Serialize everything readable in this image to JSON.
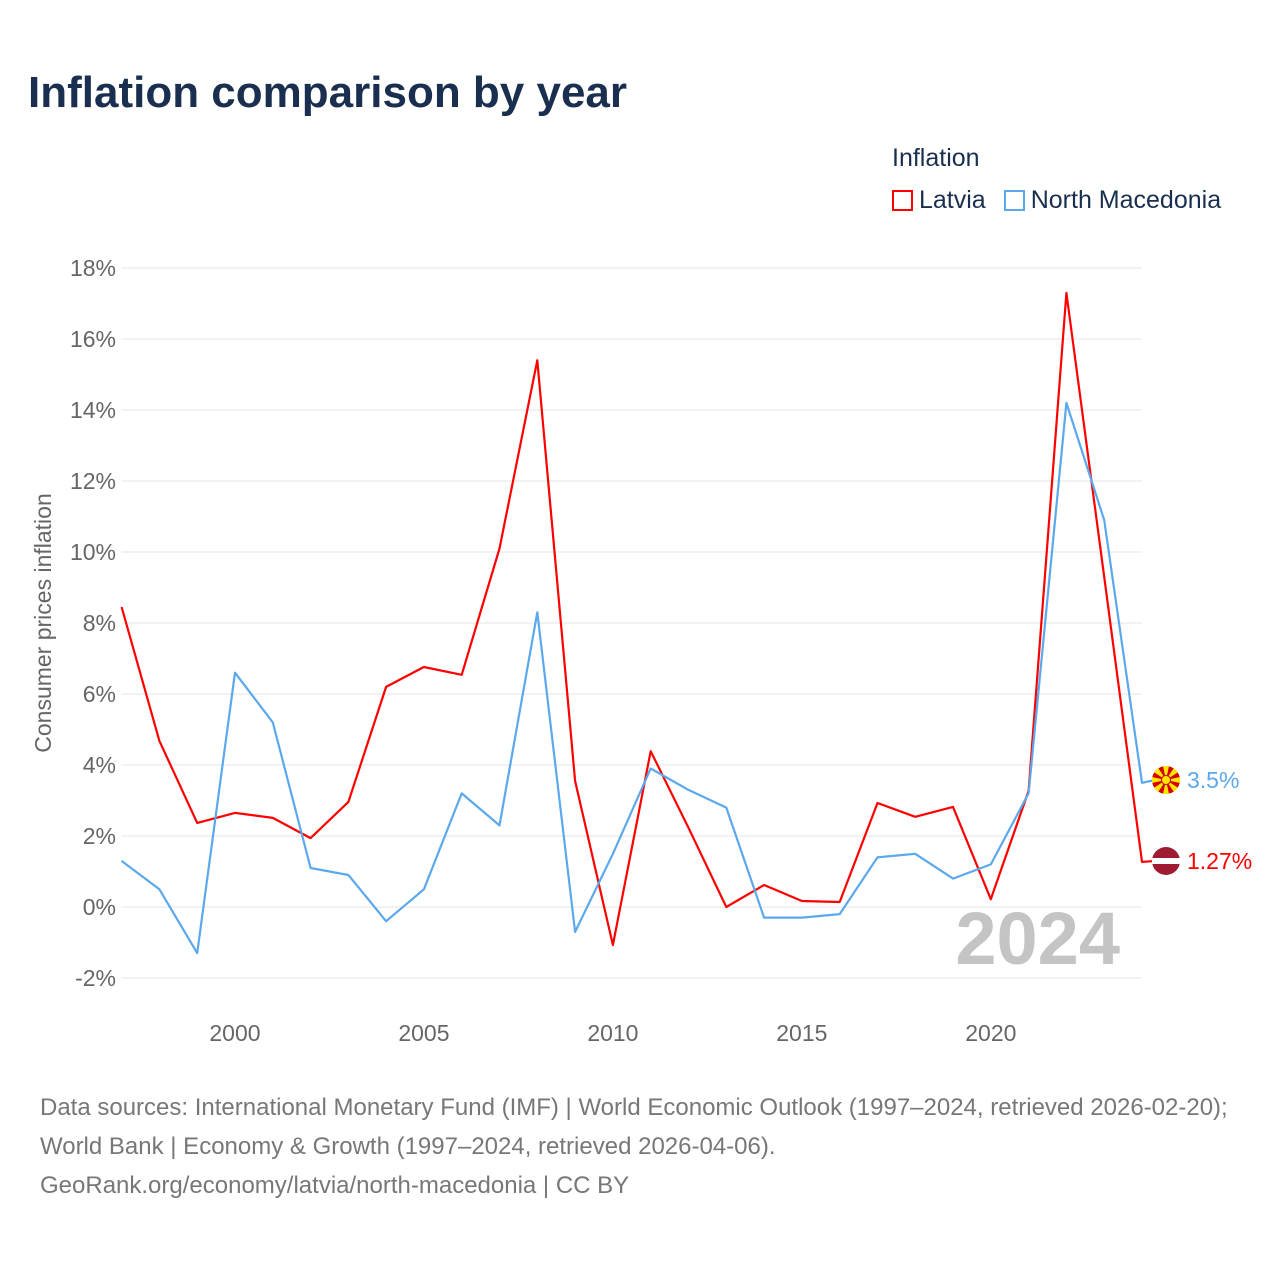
{
  "title": "Inflation comparison by year",
  "chart_data": {
    "type": "line",
    "title": "Inflation comparison by year",
    "ylabel": "Consumer prices inflation",
    "xlabel": "",
    "legend_title": "Inflation",
    "legend_position": "top-right",
    "ylim": [
      -2,
      18
    ],
    "xlim": [
      1997,
      2024
    ],
    "yticks": [
      "18%",
      "16%",
      "14%",
      "12%",
      "10%",
      "8%",
      "6%",
      "4%",
      "2%",
      "0%",
      "-2%"
    ],
    "ytick_values": [
      18,
      16,
      14,
      12,
      10,
      8,
      6,
      4,
      2,
      0,
      -2
    ],
    "xticks": [
      "2000",
      "2005",
      "2010",
      "2015",
      "2020"
    ],
    "xtick_values": [
      2000,
      2005,
      2010,
      2015,
      2020
    ],
    "grid": true,
    "year_watermark": "2024",
    "x": [
      1997,
      1998,
      1999,
      2000,
      2001,
      2002,
      2003,
      2004,
      2005,
      2006,
      2007,
      2008,
      2009,
      2010,
      2011,
      2012,
      2013,
      2014,
      2015,
      2016,
      2017,
      2018,
      2019,
      2020,
      2021,
      2022,
      2023,
      2024
    ],
    "series": [
      {
        "name": "Latvia",
        "color": "#ff0000",
        "end_label": "1.27%",
        "flag": "latvia-flag",
        "values": [
          8.45,
          4.68,
          2.37,
          2.65,
          2.51,
          1.94,
          2.96,
          6.2,
          6.76,
          6.54,
          10.1,
          15.4,
          3.55,
          -1.07,
          4.39,
          2.23,
          0.0,
          0.62,
          0.17,
          0.14,
          2.93,
          2.54,
          2.82,
          0.22,
          3.27,
          17.3,
          9.3,
          1.27
        ]
      },
      {
        "name": "North Macedonia",
        "color": "#5ba8ec",
        "end_label": "3.5%",
        "flag": "north-macedonia-flag",
        "values": [
          1.3,
          0.5,
          -1.3,
          6.6,
          5.2,
          1.1,
          0.9,
          -0.4,
          0.5,
          3.2,
          2.3,
          8.3,
          -0.7,
          1.5,
          3.9,
          3.3,
          2.8,
          -0.3,
          -0.3,
          -0.2,
          1.4,
          1.5,
          0.8,
          1.2,
          3.2,
          14.2,
          10.9,
          3.5
        ]
      }
    ]
  },
  "source": {
    "line1": "Data sources: International Monetary Fund (IMF) | World Economic Outlook (1997–2024, retrieved 2026-02-20); World Bank | Economy & Growth (1997–2024, retrieved 2026-04-06).",
    "line2": "GeoRank.org/economy/latvia/north-macedonia | CC BY"
  }
}
